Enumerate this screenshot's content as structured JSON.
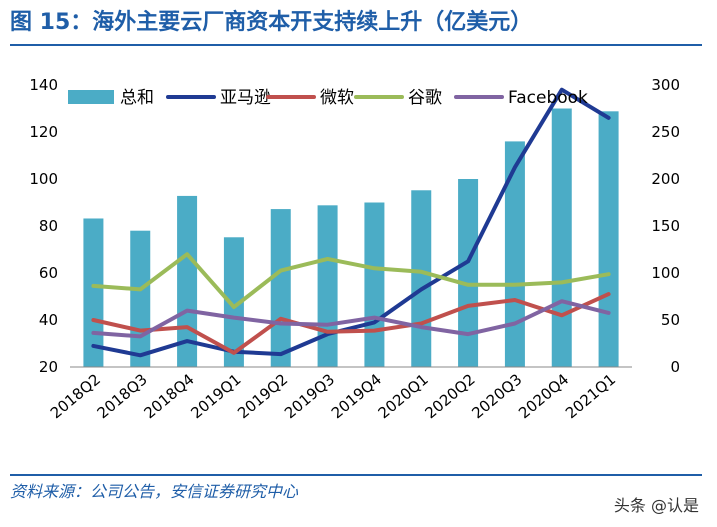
{
  "title": "图 15：海外主要云厂商资本开支持续上升（亿美元）",
  "source": "资料来源：公司公告，安信证券研究中心",
  "watermark": "头条 @认是",
  "colors": {
    "title": "#1f5ea8",
    "bar": "#4bacc6",
    "amazon": "#1f3a93",
    "microsoft": "#c0504d",
    "google": "#9bbb59",
    "facebook": "#8064a2"
  },
  "chart_data": {
    "type": "bar+line",
    "categories": [
      "2018Q2",
      "2018Q3",
      "2018Q4",
      "2019Q1",
      "2019Q2",
      "2019Q3",
      "2019Q4",
      "2020Q1",
      "2020Q2",
      "2020Q3",
      "2020Q4",
      "2021Q1"
    ],
    "legend_position": "top",
    "grid": false,
    "y_left": {
      "range": [
        20,
        140
      ],
      "ticks": [
        "20",
        "40",
        "60",
        "80",
        "100",
        "120",
        "140"
      ]
    },
    "y_right": {
      "range": [
        0,
        300
      ],
      "ticks": [
        "0",
        "50",
        "100",
        "150",
        "200",
        "250",
        "300"
      ]
    },
    "bar_series": {
      "name": "总和",
      "axis": "right",
      "values": [
        158,
        145,
        182,
        138,
        168,
        172,
        175,
        188,
        200,
        240,
        275,
        272
      ]
    },
    "line_series": [
      {
        "name": "亚马逊",
        "axis": "left",
        "color_key": "amazon",
        "values": [
          29,
          25,
          31,
          26.5,
          25.5,
          34,
          39,
          53,
          65,
          105,
          138,
          126
        ]
      },
      {
        "name": "微软",
        "axis": "left",
        "color_key": "microsoft",
        "values": [
          40,
          35.5,
          37,
          26,
          40.5,
          35,
          35.5,
          38.5,
          46,
          48.5,
          42,
          51
        ]
      },
      {
        "name": "谷歌",
        "axis": "left",
        "color_key": "google",
        "values": [
          54.5,
          53,
          68,
          45.5,
          61,
          66,
          62,
          60.5,
          55,
          55,
          56,
          59.5
        ]
      },
      {
        "name": "Facebook",
        "axis": "left",
        "color_key": "facebook",
        "values": [
          34.5,
          33,
          44,
          41,
          38.5,
          38,
          41,
          37,
          34,
          38.5,
          48,
          43
        ]
      }
    ]
  }
}
